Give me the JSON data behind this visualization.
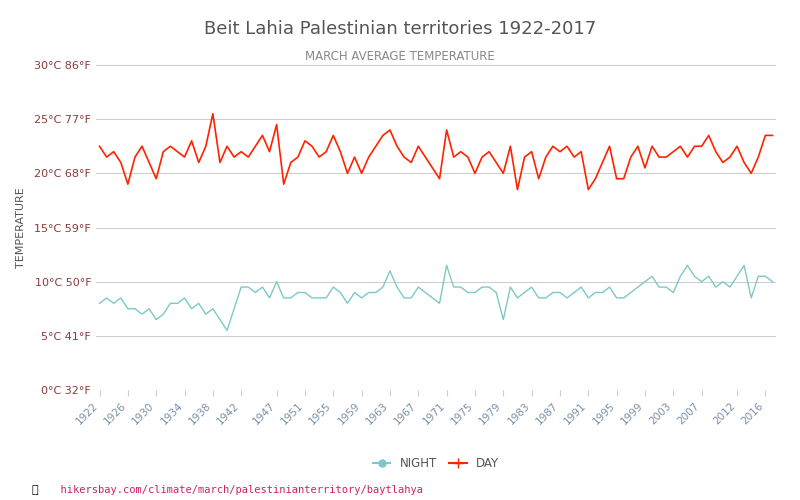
{
  "title": "Beit Lahia Palestinian territories 1922-2017",
  "subtitle": "MARCH AVERAGE TEMPERATURE",
  "ylabel": "TEMPERATURE",
  "xlabel_url": "hikersbay.com/climate/march/palestinianterritory/baytlahya",
  "bg_color": "#ffffff",
  "plot_bg_color": "#ffffff",
  "grid_color": "#cccccc",
  "day_color": "#ff2200",
  "night_color": "#7ec8c8",
  "title_color": "#555555",
  "subtitle_color": "#888888",
  "ylabel_color": "#555555",
  "tick_color": "#8b3a3a",
  "url_color": "#cc2266",
  "ylim": [
    0,
    30
  ],
  "yticks_c": [
    0,
    5,
    10,
    15,
    20,
    25,
    30
  ],
  "yticks_f": [
    32,
    41,
    50,
    59,
    68,
    77,
    86
  ],
  "years": [
    1922,
    1923,
    1924,
    1925,
    1926,
    1927,
    1928,
    1929,
    1930,
    1931,
    1932,
    1933,
    1934,
    1935,
    1936,
    1937,
    1938,
    1939,
    1940,
    1941,
    1942,
    1943,
    1944,
    1945,
    1946,
    1947,
    1948,
    1949,
    1950,
    1951,
    1952,
    1953,
    1954,
    1955,
    1956,
    1957,
    1958,
    1959,
    1960,
    1961,
    1962,
    1963,
    1964,
    1965,
    1966,
    1967,
    1968,
    1969,
    1970,
    1971,
    1972,
    1973,
    1974,
    1975,
    1976,
    1977,
    1978,
    1979,
    1980,
    1981,
    1982,
    1983,
    1984,
    1985,
    1986,
    1987,
    1988,
    1989,
    1990,
    1991,
    1992,
    1993,
    1994,
    1995,
    1996,
    1997,
    1998,
    1999,
    2000,
    2001,
    2002,
    2003,
    2004,
    2005,
    2006,
    2007,
    2008,
    2009,
    2010,
    2011,
    2012,
    2013,
    2014,
    2015,
    2016,
    2017
  ],
  "day_temps": [
    22.5,
    21.5,
    22.0,
    21.0,
    19.0,
    21.5,
    22.5,
    21.0,
    19.5,
    22.0,
    22.5,
    22.0,
    21.5,
    23.0,
    21.0,
    22.5,
    25.5,
    21.0,
    22.5,
    21.5,
    22.0,
    21.5,
    22.5,
    23.5,
    22.0,
    24.5,
    19.0,
    21.0,
    21.5,
    23.0,
    22.5,
    21.5,
    22.0,
    23.5,
    22.0,
    20.0,
    21.5,
    20.0,
    21.5,
    22.5,
    23.5,
    24.0,
    22.5,
    21.5,
    21.0,
    22.5,
    21.5,
    20.5,
    19.5,
    24.0,
    21.5,
    22.0,
    21.5,
    20.0,
    21.5,
    22.0,
    21.0,
    20.0,
    22.5,
    18.5,
    21.5,
    22.0,
    19.5,
    21.5,
    22.5,
    22.0,
    22.5,
    21.5,
    22.0,
    18.5,
    19.5,
    21.0,
    22.5,
    19.5,
    19.5,
    21.5,
    22.5,
    20.5,
    22.5,
    21.5,
    21.5,
    22.0,
    22.5,
    21.5,
    22.5,
    22.5,
    23.5,
    22.0,
    21.0,
    21.5,
    22.5,
    21.0,
    20.0,
    21.5,
    23.5,
    23.5
  ],
  "night_temps": [
    8.0,
    8.5,
    8.0,
    8.5,
    7.5,
    7.5,
    7.0,
    7.5,
    6.5,
    7.0,
    8.0,
    8.0,
    8.5,
    7.5,
    8.0,
    7.0,
    7.5,
    6.5,
    5.5,
    7.5,
    9.5,
    9.5,
    9.0,
    9.5,
    8.5,
    10.0,
    8.5,
    8.5,
    9.0,
    9.0,
    8.5,
    8.5,
    8.5,
    9.5,
    9.0,
    8.0,
    9.0,
    8.5,
    9.0,
    9.0,
    9.5,
    11.0,
    9.5,
    8.5,
    8.5,
    9.5,
    9.0,
    8.5,
    8.0,
    11.5,
    9.5,
    9.5,
    9.0,
    9.0,
    9.5,
    9.5,
    9.0,
    6.5,
    9.5,
    8.5,
    9.0,
    9.5,
    8.5,
    8.5,
    9.0,
    9.0,
    8.5,
    9.0,
    9.5,
    8.5,
    9.0,
    9.0,
    9.5,
    8.5,
    8.5,
    9.0,
    9.5,
    10.0,
    10.5,
    9.5,
    9.5,
    9.0,
    10.5,
    11.5,
    10.5,
    10.0,
    10.5,
    9.5,
    10.0,
    9.5,
    10.5,
    11.5,
    8.5,
    10.5,
    10.5,
    10.0
  ],
  "xtick_years": [
    1922,
    1926,
    1930,
    1934,
    1938,
    1942,
    1947,
    1951,
    1955,
    1959,
    1963,
    1967,
    1971,
    1975,
    1979,
    1983,
    1987,
    1991,
    1995,
    1999,
    2003,
    2007,
    2012,
    2016
  ],
  "legend_night": "NIGHT",
  "legend_day": "DAY"
}
